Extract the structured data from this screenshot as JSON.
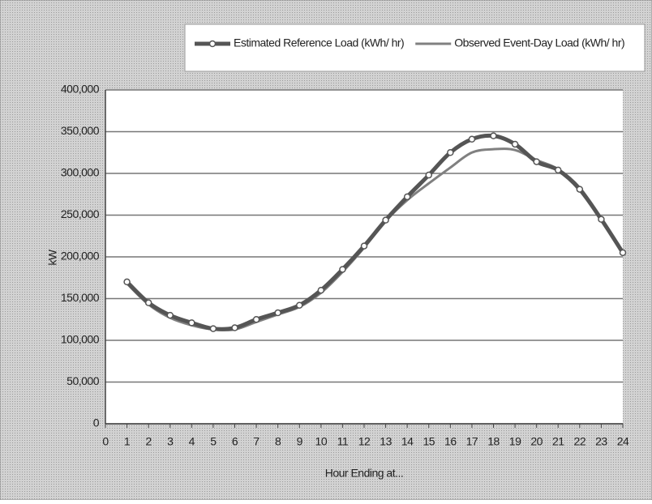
{
  "chart_data": {
    "type": "line",
    "x_label": "Hour Ending at...",
    "y_label": "kW",
    "x": [
      1,
      2,
      3,
      4,
      5,
      6,
      7,
      8,
      9,
      10,
      11,
      12,
      13,
      14,
      15,
      16,
      17,
      18,
      19,
      20,
      21,
      22,
      23,
      24
    ],
    "series": [
      {
        "name": "Estimated Reference Load (kWh/ hr)",
        "color": "#555555",
        "marker": true,
        "values": [
          170000,
          145000,
          130000,
          121000,
          114000,
          115000,
          125000,
          133000,
          142000,
          160000,
          185000,
          213000,
          244000,
          272000,
          298000,
          325000,
          341000,
          345000,
          335000,
          314000,
          304000,
          281000,
          245000,
          205000
        ]
      },
      {
        "name": "Observed Event-Day Load (kWh/ hr)",
        "color": "#808080",
        "marker": false,
        "values": [
          168000,
          143000,
          127000,
          118000,
          113000,
          113000,
          122000,
          131000,
          140000,
          157000,
          182000,
          211000,
          243000,
          268000,
          288000,
          307000,
          325000,
          329000,
          328000,
          316000,
          305000,
          283000,
          245000,
          205000
        ]
      }
    ],
    "xlim": [
      0,
      24
    ],
    "xticks": [
      0,
      1,
      2,
      3,
      4,
      5,
      6,
      7,
      8,
      9,
      10,
      11,
      12,
      13,
      14,
      15,
      16,
      17,
      18,
      19,
      20,
      21,
      22,
      23,
      24
    ],
    "ylim": [
      0,
      400000
    ],
    "yticks": [
      0,
      {
        "value": 50000,
        "label": "50,000"
      },
      {
        "value": 100000,
        "label": "100,000"
      },
      {
        "value": 150000,
        "label": "150,000"
      },
      {
        "value": 200000,
        "label": "200,000"
      },
      {
        "value": 250000,
        "label": "250,000"
      },
      {
        "value": 300000,
        "label": "300,000"
      },
      {
        "value": 350000,
        "label": "350,000"
      },
      {
        "value": 400000,
        "label": "400,000"
      }
    ],
    "grid": true,
    "legend": "top-right"
  }
}
